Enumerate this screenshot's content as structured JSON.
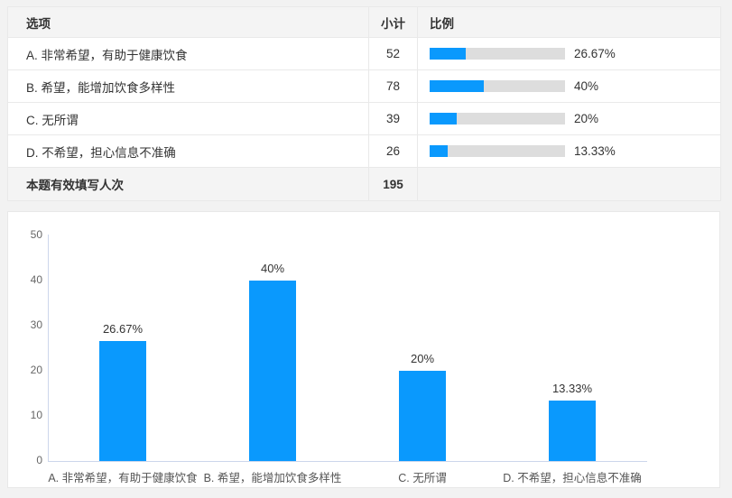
{
  "colors": {
    "accent_blue": "#0a99fd",
    "bar_track_gray": "#dddddd",
    "table_border": "#e9e9e9",
    "header_row_bg": "#f4f4f4",
    "page_bg": "#f2f2f2",
    "axis_line": "#ccd6eb"
  },
  "table": {
    "headers": [
      "选项",
      "小计",
      "比例"
    ],
    "rows": [
      {
        "label": "A. 非常希望，有助于健康饮食",
        "count": "52",
        "percent": "26.67%",
        "ratio": 26.67
      },
      {
        "label": "B. 希望，能增加饮食多样性",
        "count": "78",
        "percent": "40%",
        "ratio": 40
      },
      {
        "label": "C. 无所谓",
        "count": "39",
        "percent": "20%",
        "ratio": 20
      },
      {
        "label": "D. 不希望，担心信息不准确",
        "count": "26",
        "percent": "13.33%",
        "ratio": 13.33
      }
    ],
    "footer": {
      "label": "本题有效填写人次",
      "count": "195"
    }
  },
  "chart_data": {
    "type": "bar",
    "categories": [
      "A. 非常希望，有助于健康饮食",
      "B. 希望，能增加饮食多样性",
      "C. 无所谓",
      "D. 不希望，担心信息不准确"
    ],
    "values": [
      26.67,
      40,
      20,
      13.33
    ],
    "value_labels": [
      "26.67%",
      "40%",
      "20%",
      "13.33%"
    ],
    "yticks_desc": [
      "50",
      "40",
      "30",
      "20",
      "10",
      "0"
    ],
    "ylim": [
      0,
      50
    ],
    "grid": false,
    "legend": false,
    "bar_color": "#0a99fd",
    "title": "",
    "xlabel": "",
    "ylabel": ""
  }
}
